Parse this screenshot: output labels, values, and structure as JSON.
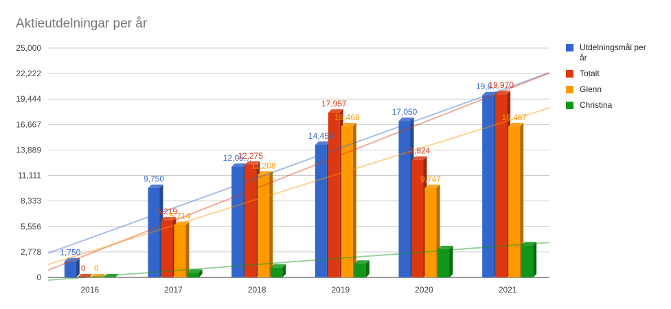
{
  "chart_data": {
    "type": "bar",
    "title": "Aktieutdelningar per år",
    "categories": [
      "2016",
      "2017",
      "2018",
      "2019",
      "2020",
      "2021"
    ],
    "series": [
      {
        "name": "Utdelningsmål per år",
        "color": "#3366cc",
        "values": [
          1750,
          9750,
          12050,
          14450,
          17050,
          19850
        ],
        "labels": [
          "1,750",
          "9,750",
          "12,05…",
          "14,450",
          "17,050",
          "19,8…"
        ]
      },
      {
        "name": "Totalt",
        "color": "#dc3912",
        "values": [
          0,
          6219,
          12275,
          17957,
          12824,
          19970
        ],
        "labels": [
          "0",
          "6,219",
          "12,275",
          "17,957",
          "12,824",
          "19,970"
        ]
      },
      {
        "name": "Glenn",
        "color": "#ff9900",
        "values": [
          0,
          5714,
          11208,
          16468,
          9747,
          16467
        ],
        "labels": [
          "0",
          "5,714",
          "11,208",
          "16,468",
          "9,747",
          "16,467"
        ]
      },
      {
        "name": "Christina",
        "color": "#109618",
        "values": [
          0,
          505,
          1067,
          1489,
          3077,
          3503
        ],
        "labels": []
      }
    ],
    "y_ticks": [
      "0",
      "2,778",
      "5,556",
      "8,333",
      "11,111",
      "13,889",
      "16,667",
      "19,444",
      "22,222",
      "25,000"
    ],
    "ylim": [
      0,
      25000
    ],
    "xlabel": "",
    "ylabel": "",
    "grid": true,
    "legend_position": "right",
    "trendlines": true
  }
}
